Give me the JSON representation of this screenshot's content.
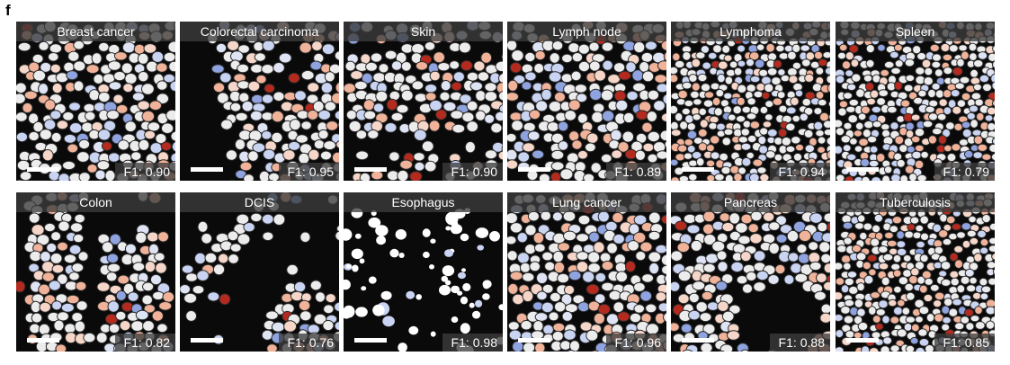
{
  "figure": {
    "panel_label": "f",
    "f1_prefix": "F1:",
    "colors": {
      "background": "#0a0a0a",
      "cell_neutral": "#ececec",
      "cell_outline": "#2a2a2a",
      "low_blue": "#8fa3e0",
      "mid_blue": "#c9d3f2",
      "mid_red": "#f0b39a",
      "high_red": "#b52a1e",
      "label_band": "#3c3c3c"
    },
    "tiles": [
      {
        "title": "Breast cancer",
        "f1": "0.90",
        "pattern": "dense"
      },
      {
        "title": "Colorectal carcinoma",
        "f1": "0.95",
        "pattern": "sparse-left"
      },
      {
        "title": "Skin",
        "f1": "0.90",
        "pattern": "band"
      },
      {
        "title": "Lymph node",
        "f1": "0.89",
        "pattern": "dense"
      },
      {
        "title": "Lymphoma",
        "f1": "0.94",
        "pattern": "dense"
      },
      {
        "title": "Spleen",
        "f1": "0.79",
        "pattern": "dense"
      },
      {
        "title": "Colon",
        "f1": "0.82",
        "pattern": "columns"
      },
      {
        "title": "DCIS",
        "f1": "0.76",
        "pattern": "diagonal"
      },
      {
        "title": "Esophagus",
        "f1": "0.98",
        "pattern": "scattered"
      },
      {
        "title": "Lung cancer",
        "f1": "0.96",
        "pattern": "dense"
      },
      {
        "title": "Pancreas",
        "f1": "0.88",
        "pattern": "hole"
      },
      {
        "title": "Tuberculosis",
        "f1": "0.85",
        "pattern": "dense"
      }
    ]
  }
}
